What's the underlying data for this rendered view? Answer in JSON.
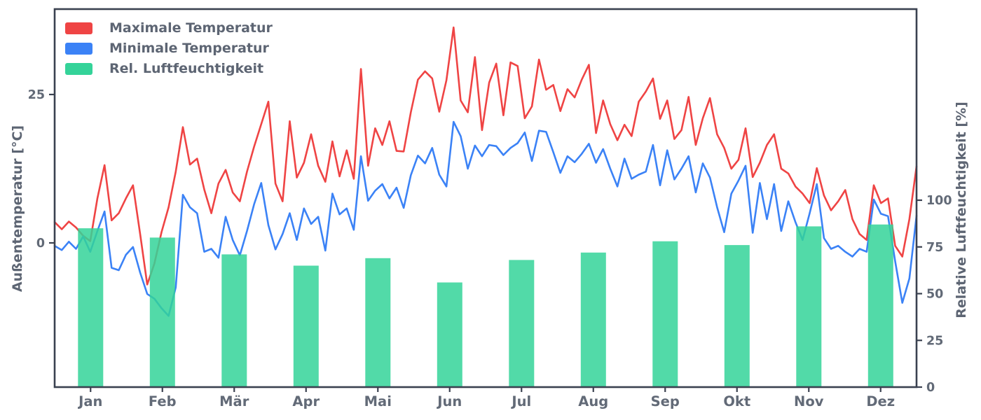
{
  "chart_data": {
    "type": "line+bar",
    "title": "",
    "x_axis": {
      "categories": [
        "Jan",
        "Feb",
        "Mär",
        "Apr",
        "Mai",
        "Jun",
        "Jul",
        "Aug",
        "Sep",
        "Okt",
        "Nov",
        "Dez"
      ],
      "note": "months of one year, daily resolution for lines"
    },
    "left_axis": {
      "label": "Außentemperatur [°C]",
      "ticks": [
        0,
        25
      ],
      "ylim": [
        -24.3,
        39.4
      ]
    },
    "right_axis": {
      "label": "Relative Luftfeuchtigkeit [%]",
      "ticks": [
        0,
        25,
        50,
        75,
        100
      ],
      "ylim": [
        0,
        202
      ]
    },
    "legend": {
      "position": "upper left",
      "items": [
        {
          "label": "Maximale Temperatur",
          "color": "#ef4444",
          "type": "line"
        },
        {
          "label": "Minimale Temperatur",
          "color": "#3b82f6",
          "type": "line"
        },
        {
          "label": "Rel. Luftfeuchtigkeit",
          "color": "#34d399",
          "type": "bar"
        }
      ]
    },
    "humidity_bars": {
      "name": "Rel. Luftfeuchtigkeit",
      "unit": "%",
      "color": "#34d399",
      "values": [
        85,
        80,
        71,
        65,
        69,
        56,
        68,
        72,
        78,
        76,
        86,
        87
      ]
    },
    "series": [
      {
        "name": "Maximale Temperatur",
        "unit": "°C",
        "color": "#ef4444",
        "sample_step_days": 3,
        "values": [
          3.5,
          2.3,
          3.6,
          2.6,
          1.2,
          0.3,
          7.5,
          13.1,
          3.8,
          5.0,
          7.5,
          9.7,
          1.5,
          -7.0,
          -3.5,
          1.8,
          6.0,
          12.0,
          19.5,
          13.2,
          14.2,
          9.0,
          5.0,
          10.0,
          12.3,
          8.5,
          7.0,
          12.0,
          16.2,
          20.0,
          23.8,
          10.0,
          7.0,
          20.5,
          11.0,
          13.5,
          18.3,
          13.0,
          10.3,
          17.1,
          11.2,
          15.6,
          10.8,
          29.3,
          13.0,
          19.3,
          16.5,
          20.5,
          15.5,
          15.4,
          22.0,
          27.5,
          28.9,
          27.7,
          22.1,
          27.4,
          36.3,
          24.0,
          22.0,
          31.3,
          19.0,
          27.0,
          30.2,
          21.5,
          30.4,
          29.8,
          21.0,
          23.0,
          30.9,
          25.8,
          26.6,
          22.2,
          25.9,
          24.5,
          27.5,
          30.0,
          18.5,
          24.0,
          20.0,
          17.3,
          19.9,
          18.0,
          23.8,
          25.5,
          27.7,
          20.9,
          24.0,
          17.5,
          19.0,
          24.6,
          16.5,
          21.0,
          24.4,
          18.3,
          16.0,
          12.5,
          14.0,
          19.3,
          11.1,
          13.5,
          16.5,
          18.3,
          12.5,
          11.7,
          9.5,
          8.3,
          6.7,
          12.6,
          8.0,
          5.5,
          7.0,
          8.9,
          4.0,
          1.5,
          0.5,
          9.7,
          6.7,
          7.5,
          -0.5,
          -2.3,
          4.0,
          12.9
        ]
      },
      {
        "name": "Minimale Temperatur",
        "unit": "°C",
        "color": "#3b82f6",
        "sample_step_days": 3,
        "values": [
          -0.5,
          -1.2,
          0.2,
          -1.0,
          1.1,
          -1.5,
          2.0,
          5.3,
          -4.2,
          -4.6,
          -2.0,
          -0.7,
          -5.0,
          -8.6,
          -9.4,
          -11.0,
          -12.3,
          -7.5,
          8.1,
          6.0,
          5.0,
          -1.5,
          -1.0,
          -2.5,
          4.4,
          0.5,
          -2.1,
          2.0,
          6.5,
          10.1,
          3.0,
          -1.1,
          1.5,
          5.0,
          0.5,
          5.8,
          3.2,
          4.4,
          -1.3,
          8.3,
          4.8,
          5.8,
          2.2,
          14.6,
          7.1,
          8.8,
          9.9,
          7.5,
          9.3,
          5.9,
          11.4,
          14.7,
          13.4,
          16.0,
          11.5,
          9.5,
          20.4,
          18.0,
          12.5,
          16.4,
          14.6,
          16.5,
          16.3,
          14.8,
          16.0,
          16.8,
          18.6,
          13.8,
          18.9,
          18.7,
          15.3,
          11.8,
          14.6,
          13.6,
          15.0,
          16.7,
          13.5,
          15.8,
          12.5,
          9.5,
          14.2,
          10.8,
          11.5,
          12.0,
          16.5,
          9.7,
          15.6,
          10.7,
          12.5,
          14.6,
          8.5,
          13.4,
          11.0,
          6.0,
          1.8,
          8.3,
          10.5,
          13.0,
          1.7,
          10.1,
          4.0,
          9.9,
          2.0,
          7.0,
          3.5,
          0.5,
          5.0,
          9.9,
          0.8,
          -1.0,
          -0.5,
          -1.5,
          -2.3,
          -1.0,
          -1.5,
          7.3,
          4.9,
          4.5,
          -3.1,
          -10.1,
          -6.0,
          4.6
        ]
      }
    ],
    "style": {
      "spine_color": "#3a4150",
      "tick_text_color": "#626a77",
      "bar_opacity": 0.85,
      "grid": false,
      "background": "#ffffff"
    }
  }
}
